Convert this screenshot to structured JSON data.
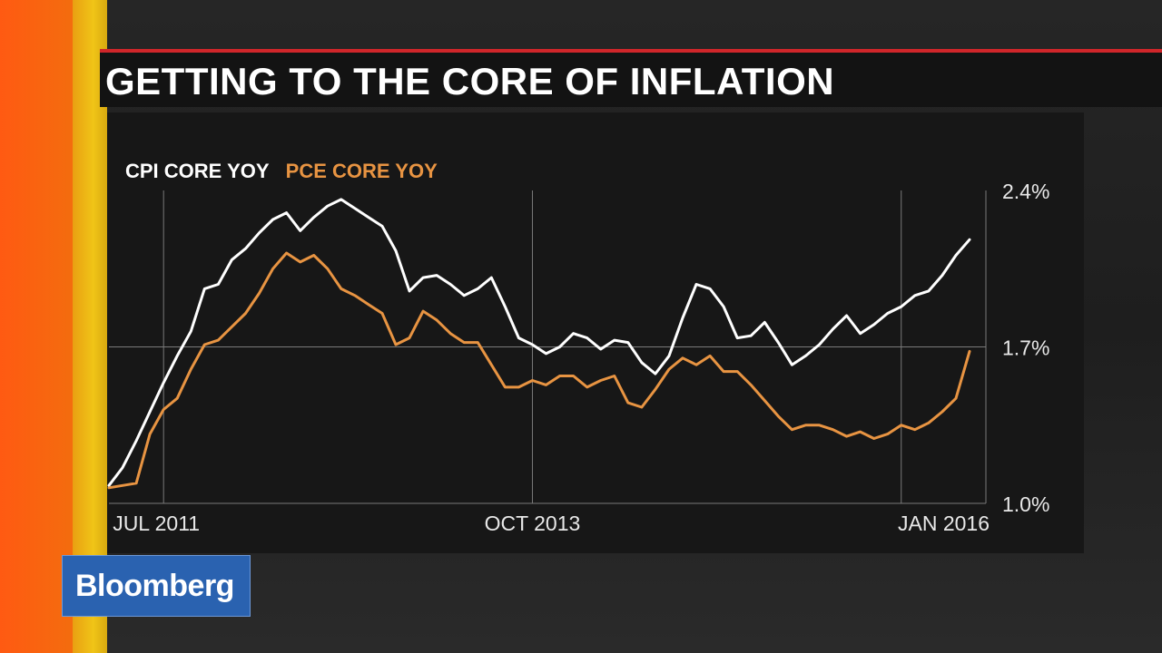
{
  "title": "GETTING TO THE CORE OF INFLATION",
  "brand": {
    "name": "Bloomberg",
    "color": "#2a62b0"
  },
  "colors": {
    "accent_red": "#d0262a",
    "cpi_line": "#ffffff",
    "pce_line": "#e89442",
    "grid": "#7a7a7a"
  },
  "chart_data": {
    "type": "line",
    "title": "GETTING TO THE CORE OF INFLATION",
    "xlabel": "",
    "ylabel": "",
    "ylim": [
      1.0,
      2.4
    ],
    "y_ticks": [
      {
        "value": 2.4,
        "label": "2.4%"
      },
      {
        "value": 1.7,
        "label": "1.7%"
      },
      {
        "value": 1.0,
        "label": "1.0%"
      }
    ],
    "x_ticks": [
      {
        "label": "JUL 2011",
        "index": 4
      },
      {
        "label": "OCT 2013",
        "index": 31
      },
      {
        "label": "JAN 2016",
        "index": 58
      }
    ],
    "grid": true,
    "legend_position": "top-left",
    "series": [
      {
        "name": "CPI CORE YOY",
        "color": "#ffffff",
        "values": [
          1.08,
          1.16,
          1.28,
          1.41,
          1.54,
          1.66,
          1.77,
          1.96,
          1.98,
          2.09,
          2.14,
          2.21,
          2.27,
          2.3,
          2.22,
          2.28,
          2.33,
          2.36,
          2.32,
          2.28,
          2.24,
          2.13,
          1.95,
          2.01,
          2.02,
          1.98,
          1.93,
          1.96,
          2.01,
          1.88,
          1.74,
          1.71,
          1.67,
          1.7,
          1.76,
          1.74,
          1.69,
          1.73,
          1.72,
          1.63,
          1.58,
          1.66,
          1.83,
          1.98,
          1.96,
          1.88,
          1.74,
          1.75,
          1.81,
          1.72,
          1.62,
          1.66,
          1.71,
          1.78,
          1.84,
          1.76,
          1.8,
          1.85,
          1.88,
          1.93,
          1.95,
          2.02,
          2.11,
          2.18
        ]
      },
      {
        "name": "PCE CORE YOY",
        "color": "#e89442",
        "values": [
          1.07,
          1.08,
          1.09,
          1.31,
          1.42,
          1.47,
          1.6,
          1.71,
          1.73,
          1.79,
          1.85,
          1.94,
          2.05,
          2.12,
          2.08,
          2.11,
          2.05,
          1.96,
          1.93,
          1.89,
          1.85,
          1.71,
          1.74,
          1.86,
          1.82,
          1.76,
          1.72,
          1.72,
          1.62,
          1.52,
          1.52,
          1.55,
          1.53,
          1.57,
          1.57,
          1.52,
          1.55,
          1.57,
          1.45,
          1.43,
          1.51,
          1.6,
          1.65,
          1.62,
          1.66,
          1.59,
          1.59,
          1.53,
          1.46,
          1.39,
          1.33,
          1.35,
          1.35,
          1.33,
          1.3,
          1.32,
          1.29,
          1.31,
          1.35,
          1.33,
          1.36,
          1.41,
          1.47,
          1.68
        ]
      }
    ]
  }
}
